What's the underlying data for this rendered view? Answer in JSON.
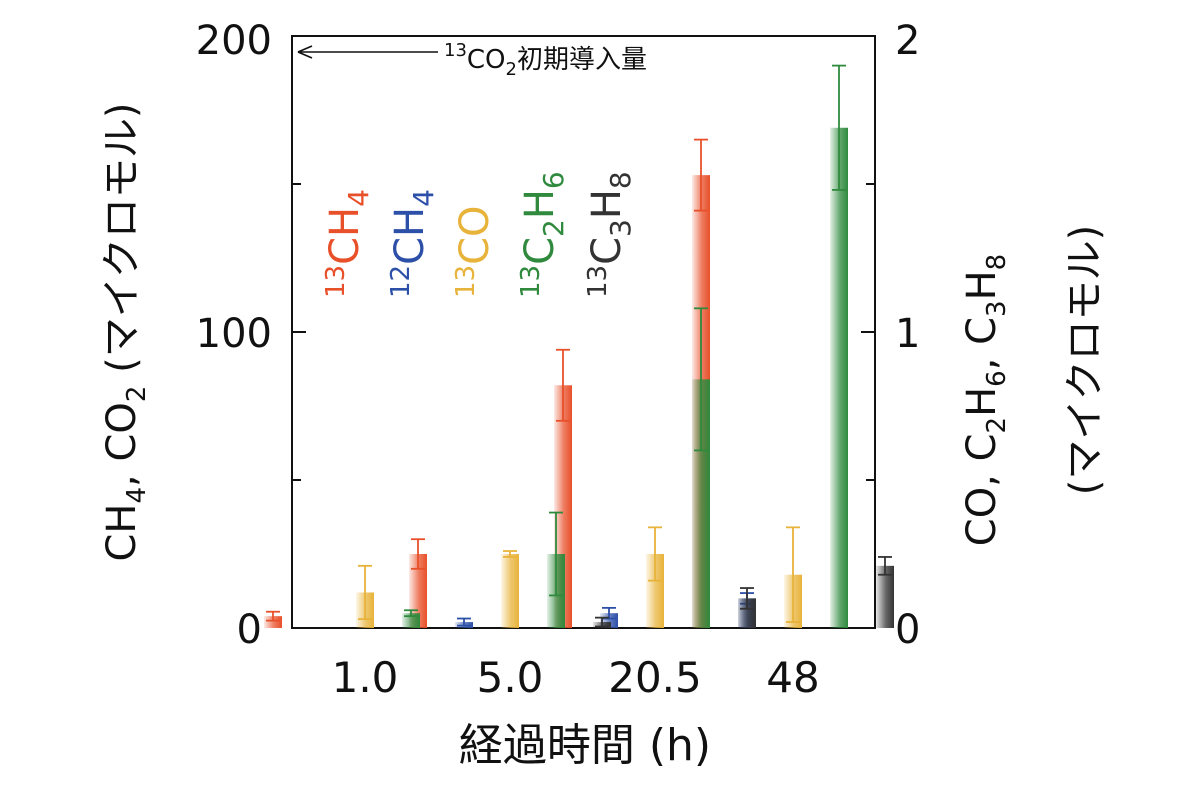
{
  "chart_data": {
    "type": "bar",
    "categories": [
      "1.0",
      "5.0",
      "20.5",
      "48"
    ],
    "xlabel": "経過時間 (h)",
    "ylabel_left": {
      "text": "CH4, CO2 (マイクロモル)",
      "parts": [
        "CH",
        "4",
        ", CO",
        "2",
        " (マイクロモル)"
      ]
    },
    "ylabel_right": {
      "line1": {
        "text": "CO, C2H6, C3H8",
        "parts": [
          "CO, C",
          "2",
          "H",
          "6",
          ", C",
          "3",
          "H",
          "8"
        ]
      },
      "line2": "(マイクロモル)"
    },
    "ylim_left": [
      0,
      200
    ],
    "ylim_right": [
      0,
      2
    ],
    "left_ticks": [
      "0",
      "100",
      "200"
    ],
    "right_ticks": [
      "0",
      "1",
      "2"
    ],
    "annotation": {
      "text": "13CO2初期導入量",
      "parts": {
        "sup": "13",
        "base": "CO",
        "sub": "2",
        "rest": "初期導入量"
      },
      "value_left": 200
    },
    "series": [
      {
        "name": "13CH4",
        "parts": {
          "sup": "13",
          "main": "CH",
          "sub": "4"
        },
        "axis": "left",
        "color": "#e8502a",
        "values": [
          4,
          25,
          82,
          153
        ],
        "errors": [
          1.5,
          5,
          12,
          12
        ]
      },
      {
        "name": "12CH4",
        "parts": {
          "sup": "12",
          "main": "CH",
          "sub": "4"
        },
        "axis": "left",
        "color": "#2c4fa8",
        "values": [
          null,
          2,
          5,
          10
        ],
        "errors": [
          null,
          1.2,
          1.8,
          1.8
        ]
      },
      {
        "name": "13CO",
        "parts": {
          "sup": "13",
          "main": "CO",
          "sub": ""
        },
        "axis": "right",
        "color": "#e8b33a",
        "values": [
          0.12,
          0.25,
          0.25,
          0.18
        ],
        "errors": [
          0.09,
          0.01,
          0.09,
          0.16
        ]
      },
      {
        "name": "13C2H6",
        "parts": {
          "sup": "13",
          "main": "C2H6"
        },
        "axis": "right",
        "color": "#2f8a3e",
        "values": [
          0.05,
          0.25,
          0.84,
          1.69
        ],
        "errors": [
          0.01,
          0.14,
          0.24,
          0.21
        ]
      },
      {
        "name": "13C3H8",
        "parts": {
          "sup": "13",
          "main": "C3H8"
        },
        "axis": "right",
        "color": "#333333",
        "values": [
          null,
          0.02,
          0.1,
          0.21
        ],
        "errors": [
          null,
          0.015,
          0.035,
          0.03
        ]
      }
    ]
  }
}
